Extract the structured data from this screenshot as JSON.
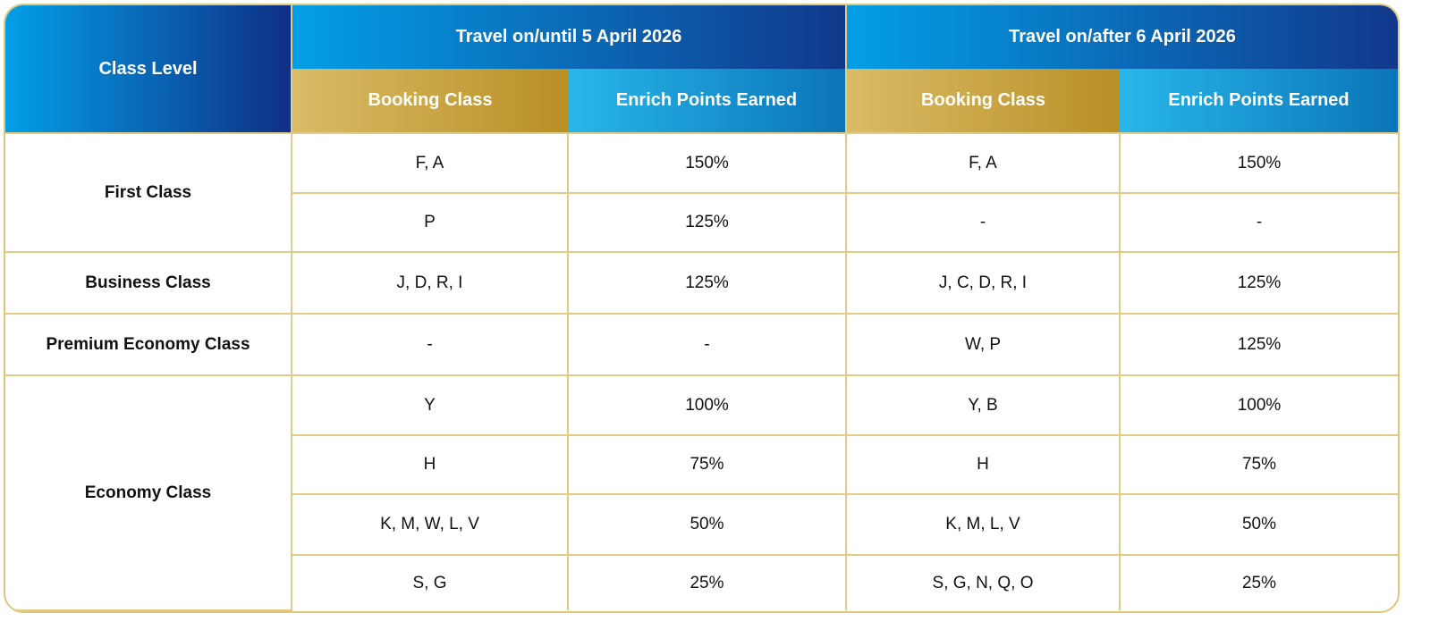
{
  "header": {
    "class_level": "Class Level",
    "period1": "Travel on/until 5 April 2026",
    "period2": "Travel on/after 6 April 2026",
    "booking_class": "Booking Class",
    "points": "Enrich Points Earned"
  },
  "colors": {
    "border": "#dfc77a",
    "header_blue": "#0e2f85",
    "header_gold": "#b98f25",
    "header_cyan": "#28b7ea"
  },
  "rows": [
    {
      "level": "First Class",
      "b1": "F, A",
      "p1": "150%",
      "b2": "F, A",
      "p2": "150%"
    },
    {
      "b1": "P",
      "p1": "125%",
      "b2": "-",
      "p2": "-"
    },
    {
      "level": "Business Class",
      "b1": "J, D, R, I",
      "p1": "125%",
      "b2": "J, C, D, R, I",
      "p2": "125%"
    },
    {
      "level": "Premium Economy Class",
      "b1": "-",
      "p1": "-",
      "b2": "W, P",
      "p2": "125%"
    },
    {
      "level": "Economy Class",
      "b1": "Y",
      "p1": "100%",
      "b2": "Y, B",
      "p2": "100%"
    },
    {
      "b1": "H",
      "p1": "75%",
      "b2": "H",
      "p2": "75%"
    },
    {
      "b1": "K, M, W, L, V",
      "p1": "50%",
      "b2": "K, M, L, V",
      "p2": "50%"
    },
    {
      "b1": "S, G",
      "p1": "25%",
      "b2": "S, G, N, Q, O",
      "p2": "25%"
    }
  ]
}
